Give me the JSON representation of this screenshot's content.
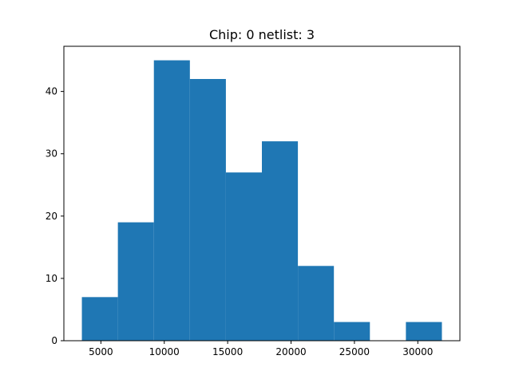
{
  "chart_data": {
    "type": "bar",
    "subtype": "histogram",
    "title": "Chip: 0 netlist: 3",
    "xlabel": "",
    "ylabel": "",
    "color": "#1f77b4",
    "bins": [
      {
        "start": 3500,
        "end": 6340,
        "count": 7
      },
      {
        "start": 6340,
        "end": 9180,
        "count": 19
      },
      {
        "start": 9180,
        "end": 12020,
        "count": 45
      },
      {
        "start": 12020,
        "end": 14860,
        "count": 42
      },
      {
        "start": 14860,
        "end": 17700,
        "count": 27
      },
      {
        "start": 17700,
        "end": 20540,
        "count": 32
      },
      {
        "start": 20540,
        "end": 23380,
        "count": 12
      },
      {
        "start": 23380,
        "end": 26220,
        "count": 3
      },
      {
        "start": 26220,
        "end": 29060,
        "count": 0
      },
      {
        "start": 29060,
        "end": 31900,
        "count": 3
      }
    ],
    "xlim": [
      2080,
      33320
    ],
    "ylim": [
      0,
      47.25
    ],
    "xticks": [
      5000,
      10000,
      15000,
      20000,
      25000,
      30000
    ],
    "yticks": [
      0,
      10,
      20,
      30,
      40
    ],
    "grid": false,
    "legend": "none"
  }
}
